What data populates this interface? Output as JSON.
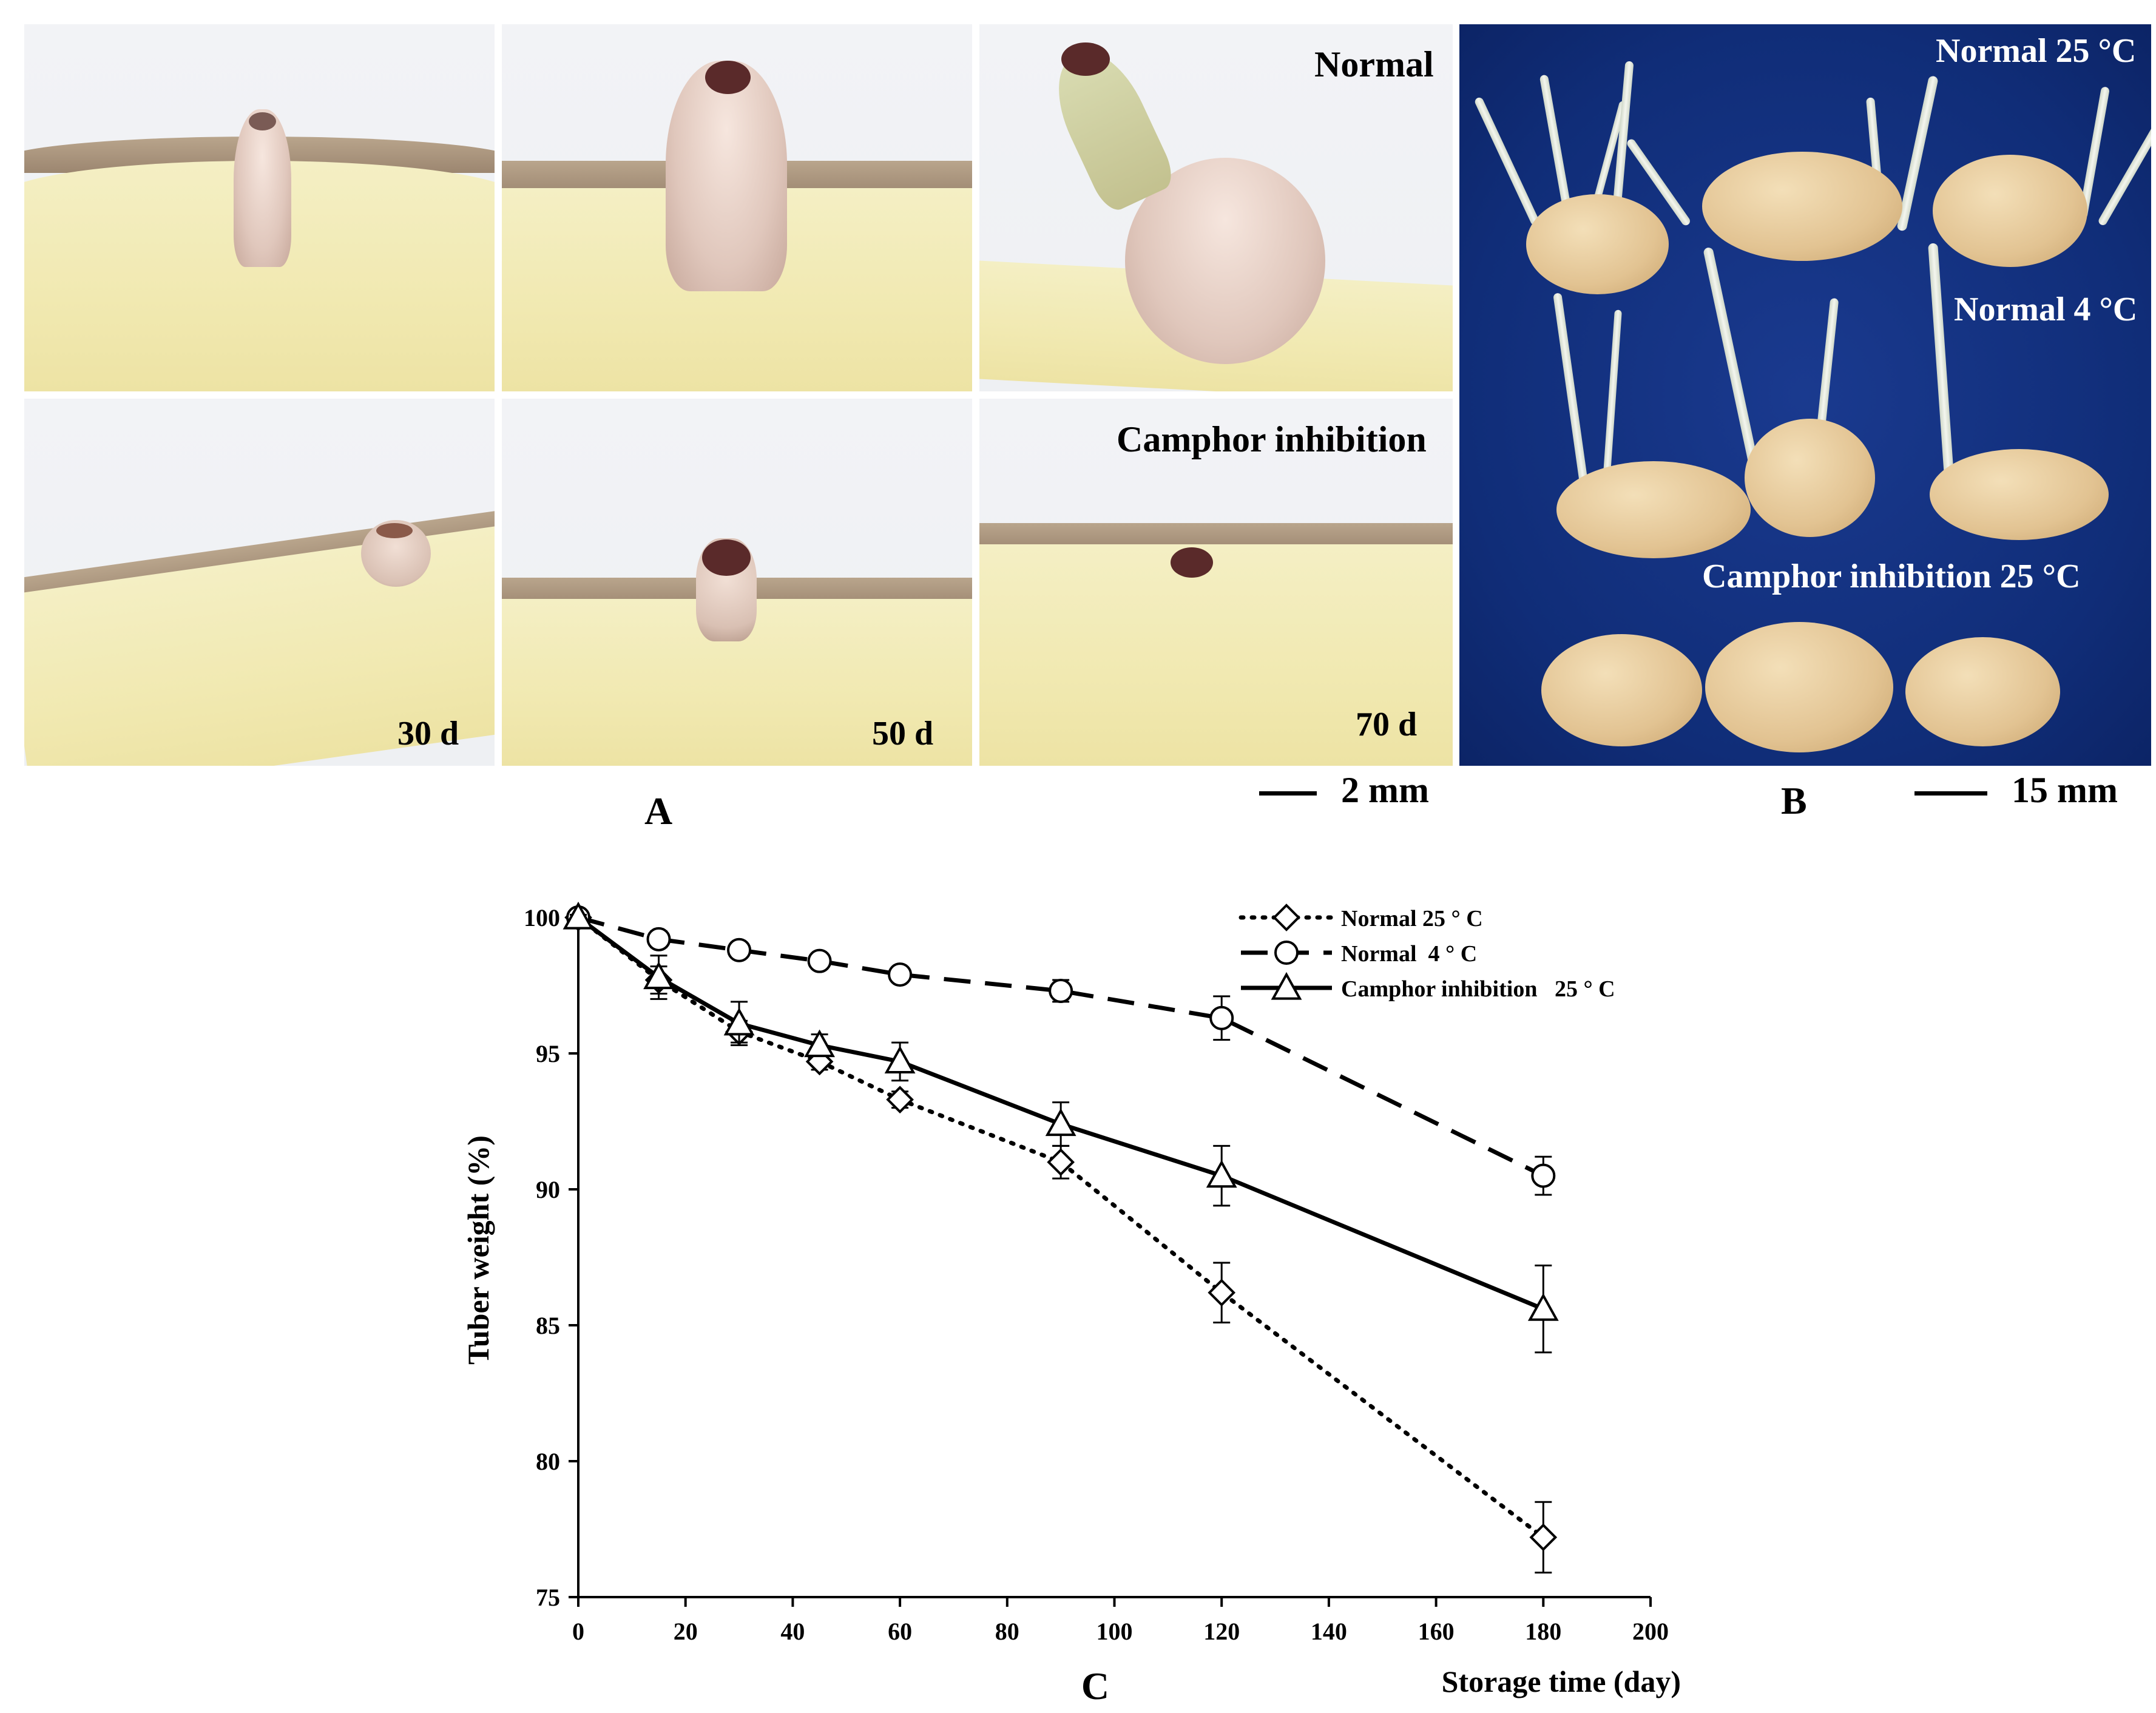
{
  "panelA": {
    "label": "A",
    "row_labels": {
      "normal": "Normal",
      "camphor": "Camphor inhibition"
    },
    "day_labels": [
      "30 d",
      "50 d",
      "70 d"
    ],
    "scale_label": "2 mm"
  },
  "panelB": {
    "label": "B",
    "group_labels": [
      "Normal 25 °C",
      "Normal 4 °C",
      "Camphor inhibition 25 °C"
    ],
    "scale_label": "15 mm"
  },
  "panelC": {
    "label": "C"
  },
  "chart_data": {
    "type": "line",
    "xlabel": "Storage time (day)",
    "ylabel": "Tuber weight (%)",
    "xlim": [
      0,
      200
    ],
    "ylim": [
      75,
      100
    ],
    "xticks": [
      0,
      20,
      40,
      60,
      80,
      100,
      120,
      140,
      160,
      180,
      200
    ],
    "yticks": [
      75,
      80,
      85,
      90,
      95,
      100
    ],
    "grid": false,
    "legend_position": "top-right",
    "series": [
      {
        "name": "Normal 25 ° C",
        "marker": "diamond",
        "line_style": "dotted",
        "x": [
          0,
          15,
          30,
          45,
          60,
          90,
          120,
          180
        ],
        "y": [
          100,
          97.7,
          95.8,
          94.7,
          93.3,
          91.0,
          86.2,
          77.2
        ],
        "err": [
          0.2,
          0.5,
          0.4,
          0.3,
          0.3,
          0.6,
          1.1,
          1.3
        ]
      },
      {
        "name": "Normal  4 ° C",
        "marker": "circle",
        "line_style": "dashed",
        "x": [
          0,
          15,
          30,
          45,
          60,
          90,
          120,
          180
        ],
        "y": [
          100,
          99.2,
          98.8,
          98.4,
          97.9,
          97.3,
          96.3,
          90.5
        ],
        "err": [
          0.1,
          0.3,
          0.2,
          0.2,
          0.2,
          0.4,
          0.8,
          0.7
        ]
      },
      {
        "name": "Camphor inhibition   25 ° C",
        "marker": "triangle",
        "line_style": "solid",
        "x": [
          0,
          15,
          30,
          45,
          60,
          90,
          120,
          180
        ],
        "y": [
          100,
          97.8,
          96.1,
          95.3,
          94.7,
          92.4,
          90.5,
          85.6
        ],
        "err": [
          0.1,
          0.8,
          0.8,
          0.4,
          0.7,
          0.8,
          1.1,
          1.6
        ]
      }
    ]
  }
}
